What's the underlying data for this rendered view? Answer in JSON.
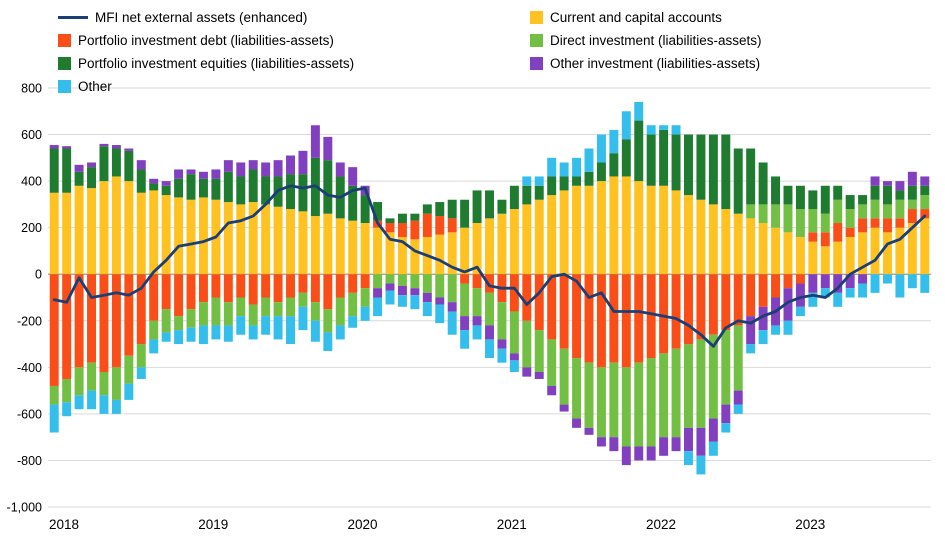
{
  "legend": {
    "columns": [
      [
        {
          "label": "MFI net external assets (enhanced)",
          "swatch": "line",
          "color": "#1B3F74"
        },
        {
          "label": "Portfolio investment debt (liabilities-assets)",
          "swatch": "box",
          "color": "#FA4E18"
        },
        {
          "label": "Portfolio investment equities (liabilities-assets)",
          "swatch": "box",
          "color": "#1E7B2F"
        },
        {
          "label": "Other",
          "swatch": "box",
          "color": "#34BEEC"
        }
      ],
      [
        {
          "label": "Current and capital accounts",
          "swatch": "box",
          "color": "#FFC220"
        },
        {
          "label": "Direct investment (liabilities-assets)",
          "swatch": "box",
          "color": "#72BF44"
        },
        {
          "label": "Other investment (liabilities-assets)",
          "swatch": "box",
          "color": "#8040BF"
        }
      ]
    ]
  },
  "chart_data": {
    "type": "bar",
    "subtype": "stacked-monthly-with-line-overlay",
    "n_points": 71,
    "start_month": "2018-01",
    "ylim": [
      -1000,
      800
    ],
    "ytick_step": 200,
    "grid": true,
    "grid_color": "#D9D9D9",
    "zero_line_color": "#9A9A9A",
    "x_ticks": [
      {
        "label": "2018",
        "index": 0
      },
      {
        "label": "2019",
        "index": 12
      },
      {
        "label": "2020",
        "index": 24
      },
      {
        "label": "2021",
        "index": 36
      },
      {
        "label": "2022",
        "index": 48
      },
      {
        "label": "2023",
        "index": 60
      }
    ],
    "series": [
      {
        "id": "cca",
        "name": "Current and capital accounts",
        "color": "#FFC220",
        "values": [
          350,
          350,
          380,
          370,
          400,
          420,
          400,
          350,
          360,
          340,
          330,
          320,
          330,
          320,
          310,
          300,
          310,
          300,
          290,
          280,
          270,
          250,
          260,
          240,
          230,
          220,
          200,
          180,
          160,
          150,
          160,
          170,
          180,
          200,
          220,
          240,
          260,
          280,
          300,
          320,
          340,
          360,
          380,
          380,
          400,
          420,
          420,
          400,
          380,
          380,
          360,
          340,
          320,
          300,
          280,
          260,
          240,
          220,
          200,
          180,
          160,
          140,
          120,
          140,
          160,
          180,
          200,
          180,
          200,
          220,
          240
        ]
      },
      {
        "id": "pid",
        "name": "Portfolio investment debt (liabilities-assets)",
        "color": "#FA4E18",
        "values": [
          -480,
          -450,
          -400,
          -380,
          -420,
          -400,
          -350,
          -300,
          -200,
          -150,
          -180,
          -150,
          -120,
          -100,
          -120,
          -100,
          -130,
          -100,
          -120,
          -100,
          -80,
          -120,
          -150,
          -100,
          -80,
          -60,
          30,
          40,
          60,
          80,
          100,
          80,
          60,
          -40,
          -60,
          -80,
          -120,
          -160,
          -200,
          -240,
          -280,
          -320,
          -360,
          -380,
          -400,
          -380,
          -400,
          -380,
          -360,
          -340,
          -320,
          -300,
          -280,
          -260,
          -240,
          -220,
          -180,
          -140,
          -100,
          -60,
          -40,
          40,
          60,
          80,
          40,
          60,
          40,
          60,
          40,
          60,
          40
        ]
      },
      {
        "id": "di",
        "name": "Direct investment (liabilities-assets)",
        "color": "#72BF44",
        "values": [
          -80,
          -100,
          -120,
          -120,
          -100,
          -140,
          -120,
          -100,
          -80,
          -100,
          -60,
          -80,
          -100,
          -120,
          -100,
          -80,
          -90,
          -80,
          -60,
          -80,
          -60,
          -80,
          -100,
          -120,
          -100,
          -80,
          -60,
          -40,
          -50,
          -60,
          -80,
          -100,
          -120,
          -140,
          -120,
          -140,
          -160,
          -180,
          -200,
          -180,
          -200,
          -240,
          -260,
          -280,
          -300,
          -320,
          -340,
          -360,
          -380,
          -360,
          -380,
          -360,
          -380,
          -360,
          -320,
          -280,
          60,
          80,
          100,
          120,
          120,
          100,
          80,
          100,
          80,
          60,
          80,
          60,
          80,
          40,
          60
        ]
      },
      {
        "id": "pie",
        "name": "Portfolio investment equities (liabilities-assets)",
        "color": "#1E7B2F",
        "values": [
          190,
          190,
          60,
          90,
          150,
          120,
          130,
          100,
          30,
          40,
          80,
          110,
          80,
          90,
          130,
          120,
          140,
          120,
          130,
          150,
          160,
          250,
          230,
          180,
          150,
          120,
          80,
          20,
          40,
          30,
          40,
          60,
          80,
          120,
          140,
          120,
          60,
          100,
          80,
          60,
          80,
          60,
          40,
          60,
          80,
          100,
          160,
          260,
          220,
          240,
          240,
          260,
          280,
          300,
          320,
          280,
          240,
          180,
          120,
          80,
          100,
          80,
          120,
          60,
          60,
          40,
          60,
          80,
          40,
          60,
          40
        ]
      },
      {
        "id": "oi",
        "name": "Other investment (liabilities-assets)",
        "color": "#8040BF",
        "values": [
          15,
          10,
          30,
          20,
          10,
          15,
          10,
          40,
          20,
          20,
          40,
          20,
          30,
          40,
          50,
          60,
          40,
          60,
          70,
          80,
          100,
          140,
          100,
          60,
          80,
          40,
          -40,
          -30,
          -40,
          -30,
          -40,
          -30,
          -40,
          -60,
          -40,
          -60,
          -40,
          -30,
          -40,
          -30,
          -40,
          -30,
          -40,
          -30,
          -40,
          -60,
          -80,
          -60,
          -60,
          -80,
          -60,
          -100,
          -120,
          -100,
          -80,
          -60,
          -120,
          -100,
          -120,
          -140,
          -100,
          -80,
          -60,
          -80,
          -60,
          -40,
          40,
          20,
          40,
          60,
          40
        ]
      },
      {
        "id": "other",
        "name": "Other",
        "color": "#34BEEC",
        "values": [
          -120,
          -60,
          -60,
          -80,
          -80,
          -60,
          -70,
          -50,
          -60,
          -40,
          -60,
          -60,
          -80,
          -60,
          -70,
          -80,
          -60,
          -80,
          -100,
          -120,
          -100,
          -90,
          -80,
          -60,
          -50,
          -60,
          -80,
          -60,
          -50,
          -60,
          -60,
          -80,
          -100,
          -80,
          -60,
          -80,
          -60,
          -50,
          40,
          40,
          80,
          60,
          80,
          100,
          120,
          100,
          120,
          80,
          40,
          20,
          40,
          -60,
          -80,
          -60,
          -40,
          -40,
          -40,
          -60,
          -40,
          -60,
          -40,
          -60,
          -40,
          -60,
          -40,
          -60,
          -80,
          -40,
          -100,
          -60,
          -80
        ]
      }
    ],
    "line": {
      "id": "mfi",
      "name": "MFI net external assets (enhanced)",
      "color": "#1B3F74",
      "values": [
        -110,
        -120,
        -15,
        -100,
        -90,
        -80,
        -90,
        -60,
        10,
        60,
        120,
        130,
        140,
        160,
        220,
        230,
        250,
        300,
        360,
        380,
        370,
        380,
        340,
        330,
        360,
        370,
        220,
        150,
        140,
        100,
        80,
        60,
        30,
        10,
        30,
        -50,
        -60,
        -60,
        -130,
        -80,
        -10,
        0,
        -30,
        -100,
        -80,
        -160,
        -160,
        -160,
        -170,
        -180,
        -190,
        -220,
        -260,
        -310,
        -230,
        -200,
        -210,
        -180,
        -160,
        -120,
        -100,
        -90,
        -100,
        -60,
        0,
        30,
        60,
        130,
        150,
        200,
        250
      ]
    }
  }
}
